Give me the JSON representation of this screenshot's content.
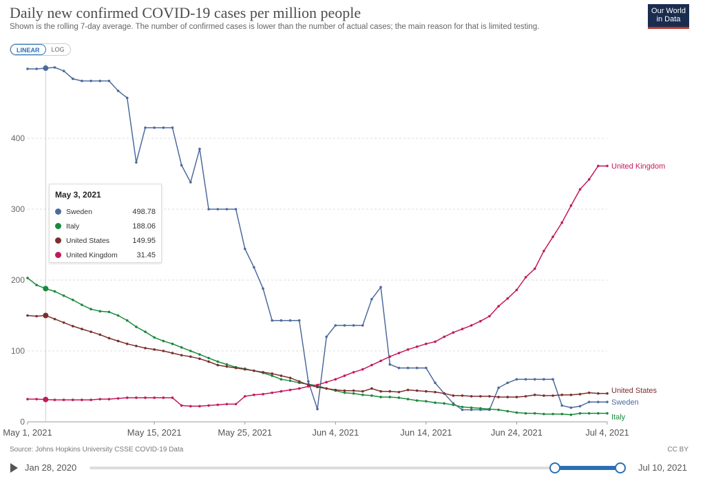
{
  "header": {
    "title": "Daily new confirmed COVID-19 cases per million people",
    "subtitle": "Shown is the rolling 7-day average. The number of confirmed cases is lower than the number of actual cases; the main reason for that is limited testing.",
    "logo_line1": "Our World",
    "logo_line2": "in Data"
  },
  "scale_toggle": {
    "linear": "LINEAR",
    "log": "LOG",
    "selected": "LINEAR"
  },
  "footer": {
    "source": "Source: Johns Hopkins University CSSE COVID-19 Data",
    "license": "CC BY"
  },
  "timeline": {
    "start": "Jan 28, 2020",
    "end": "Jul 10, 2021"
  },
  "tooltip": {
    "date": "May 3, 2021",
    "rows": [
      {
        "name": "Sweden",
        "value": "498.78",
        "color": "#4c6a9c"
      },
      {
        "name": "Italy",
        "value": "188.06",
        "color": "#1a8a3c"
      },
      {
        "name": "United States",
        "value": "149.95",
        "color": "#7b2e2e"
      },
      {
        "name": "United Kingdom",
        "value": "31.45",
        "color": "#c2185b"
      }
    ]
  },
  "chart_data": {
    "type": "line",
    "title": "Daily new confirmed COVID-19 cases per million people",
    "ylim": [
      0,
      500
    ],
    "yticks": [
      0,
      100,
      200,
      300,
      400
    ],
    "x_tick_labels": [
      {
        "label": "May 1, 2021",
        "day": 0
      },
      {
        "label": "May 15, 2021",
        "day": 14
      },
      {
        "label": "May 25, 2021",
        "day": 24
      },
      {
        "label": "Jun 4, 2021",
        "day": 34
      },
      {
        "label": "Jun 14, 2021",
        "day": 44
      },
      {
        "label": "Jun 24, 2021",
        "day": 54
      },
      {
        "label": "Jul 4, 2021",
        "day": 64
      }
    ],
    "x_days": [
      0,
      1,
      2,
      3,
      4,
      5,
      6,
      7,
      8,
      9,
      10,
      11,
      12,
      13,
      14,
      15,
      16,
      17,
      18,
      19,
      20,
      21,
      22,
      23,
      24,
      25,
      26,
      27,
      28,
      29,
      30,
      31,
      32,
      33,
      34,
      35,
      36,
      37,
      38,
      39,
      40,
      41,
      42,
      43,
      44,
      45,
      46,
      47,
      48,
      49,
      50,
      51,
      52,
      53,
      54,
      55,
      56,
      57,
      58,
      59,
      60,
      61,
      62,
      63,
      64
    ],
    "highlight_day": 2,
    "series": [
      {
        "name": "Sweden",
        "color": "#4c6a9c",
        "values": [
          498,
          498,
          499,
          500,
          495,
          484,
          481,
          481,
          481,
          481,
          467,
          457,
          366,
          415,
          415,
          415,
          415,
          362,
          338,
          385,
          300,
          300,
          300,
          300,
          244,
          218,
          188,
          143,
          143,
          143,
          143,
          57,
          18,
          120,
          136,
          136,
          136,
          136,
          173,
          190,
          81,
          76,
          76,
          76,
          76,
          55,
          40,
          26,
          17,
          17,
          17,
          17,
          48,
          55,
          60,
          60,
          60,
          60,
          60,
          23,
          20,
          22,
          28,
          28,
          28
        ]
      },
      {
        "name": "Italy",
        "color": "#1a8a3c",
        "values": [
          203,
          193,
          188,
          184,
          178,
          172,
          165,
          159,
          156,
          155,
          150,
          143,
          134,
          127,
          119,
          114,
          110,
          105,
          100,
          95,
          90,
          85,
          81,
          77,
          75,
          72,
          69,
          65,
          60,
          58,
          55,
          53,
          51,
          47,
          44,
          41,
          40,
          38,
          37,
          35,
          35,
          34,
          32,
          30,
          29,
          27,
          26,
          24,
          21,
          20,
          19,
          18,
          17,
          15,
          13,
          12,
          12,
          11,
          11,
          11,
          10,
          12,
          12,
          12,
          12
        ]
      },
      {
        "name": "United States",
        "color": "#7b2e2e",
        "values": [
          150,
          149,
          150,
          145,
          140,
          135,
          131,
          127,
          123,
          118,
          114,
          110,
          107,
          104,
          102,
          100,
          97,
          94,
          92,
          89,
          85,
          80,
          78,
          76,
          74,
          72,
          70,
          68,
          65,
          62,
          57,
          52,
          49,
          47,
          45,
          44,
          44,
          43,
          47,
          43,
          43,
          42,
          45,
          44,
          43,
          42,
          40,
          37,
          37,
          36,
          36,
          36,
          35,
          35,
          35,
          36,
          38,
          37,
          37,
          38,
          38,
          39,
          41,
          40,
          40
        ]
      },
      {
        "name": "United Kingdom",
        "color": "#c2185b",
        "values": [
          32,
          32,
          31.45,
          31,
          31,
          31,
          31,
          31,
          32,
          32,
          33,
          34,
          34,
          34,
          34,
          34,
          34,
          23,
          22,
          22,
          23,
          24,
          25,
          25,
          36,
          38,
          39,
          41,
          43,
          45,
          47,
          50,
          52,
          56,
          60,
          65,
          70,
          74,
          80,
          86,
          92,
          97,
          102,
          106,
          110,
          113,
          120,
          126,
          131,
          136,
          142,
          149,
          163,
          174,
          186,
          204,
          216,
          241,
          261,
          281,
          305,
          328,
          342,
          361,
          361
        ]
      }
    ]
  }
}
